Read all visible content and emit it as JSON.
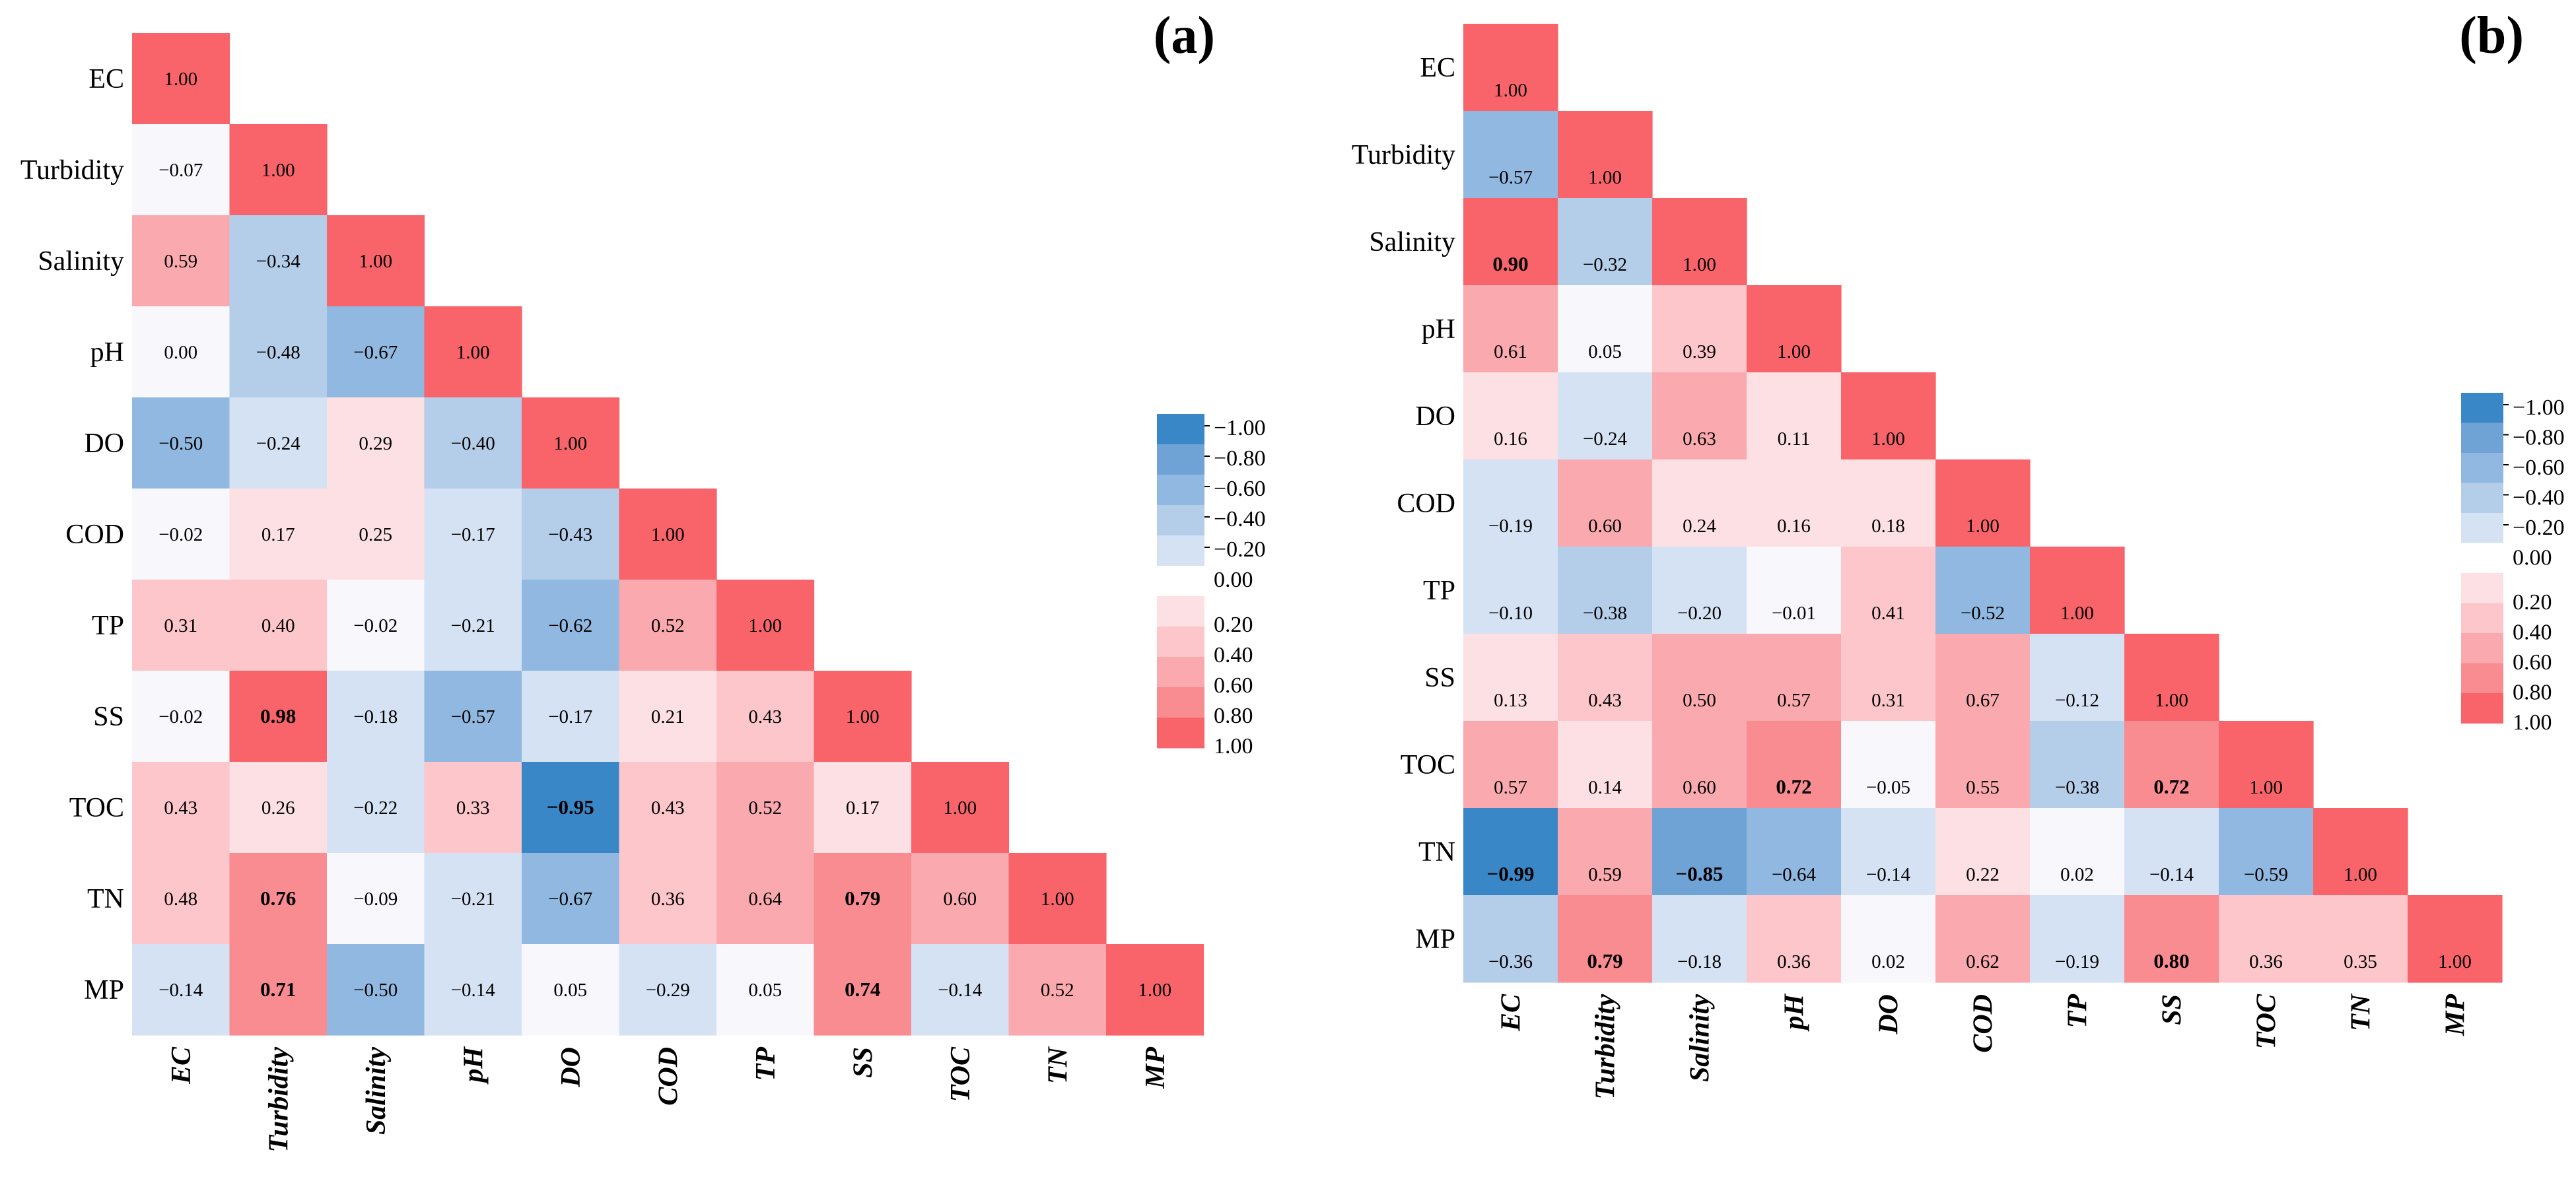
{
  "figure": {
    "colors": {
      "neg_100": "#3a87c7",
      "neg_080": "#6fa3d6",
      "neg_060": "#91b8e0",
      "neg_040": "#b4cde9",
      "neg_020": "#d5e2f3",
      "zero": "#f8f7fb",
      "pos_020": "#fde0e3",
      "pos_040": "#fcc6ca",
      "pos_060": "#faaaae",
      "pos_080": "#f98c90",
      "pos_100": "#f86469"
    }
  },
  "chart_data": [
    {
      "type": "heatmap",
      "title": "(a)",
      "variables": [
        "EC",
        "Turbidity",
        "Salinity",
        "pH",
        "DO",
        "COD",
        "TP",
        "SS",
        "TOC",
        "TN",
        "MP"
      ],
      "matrix": [
        [
          1.0
        ],
        [
          -0.07,
          1.0
        ],
        [
          0.59,
          -0.34,
          1.0
        ],
        [
          0.0,
          -0.48,
          -0.67,
          1.0
        ],
        [
          -0.5,
          -0.24,
          0.29,
          -0.4,
          1.0
        ],
        [
          -0.02,
          0.17,
          0.25,
          -0.17,
          -0.43,
          1.0
        ],
        [
          0.31,
          0.4,
          -0.02,
          -0.21,
          -0.62,
          0.52,
          1.0
        ],
        [
          -0.02,
          0.98,
          -0.18,
          -0.57,
          -0.17,
          0.21,
          0.43,
          1.0
        ],
        [
          0.43,
          0.26,
          -0.22,
          0.33,
          -0.95,
          0.43,
          0.52,
          0.17,
          1.0
        ],
        [
          0.48,
          0.76,
          -0.09,
          -0.21,
          -0.67,
          0.36,
          0.64,
          0.79,
          0.6,
          1.0
        ],
        [
          -0.14,
          0.71,
          -0.5,
          -0.14,
          0.05,
          -0.29,
          0.05,
          0.74,
          -0.14,
          0.52,
          1.0
        ]
      ],
      "cell_labels": [
        [
          "1.00"
        ],
        [
          "−0.07",
          "1.00"
        ],
        [
          "0.59",
          "−0.34",
          "1.00"
        ],
        [
          "0.00",
          "−0.48",
          "−0.67",
          "1.00"
        ],
        [
          "−0.50",
          "−0.24",
          "0.29",
          "−0.40",
          "1.00"
        ],
        [
          "−0.02",
          "0.17",
          "0.25",
          "−0.17",
          "−0.43",
          "1.00"
        ],
        [
          "0.31",
          "0.40",
          "−0.02",
          "−0.21",
          "−0.62",
          "0.52",
          "1.00"
        ],
        [
          "−0.02",
          "0.98",
          "−0.18",
          "−0.57",
          "−0.17",
          "0.21",
          "0.43",
          "1.00"
        ],
        [
          "0.43",
          "0.26",
          "−0.22",
          "0.33",
          "−0.95",
          "0.43",
          "0.52",
          "0.17",
          "1.00"
        ],
        [
          "0.48",
          "0.76",
          "−0.09",
          "−0.21",
          "−0.67",
          "0.36",
          "0.64",
          "0.79",
          "0.60",
          "1.00"
        ],
        [
          "−0.14",
          "0.71",
          "−0.50",
          "−0.14",
          "0.05",
          "−0.29",
          "0.05",
          "0.74",
          "−0.14",
          "0.52",
          "1.00"
        ]
      ],
      "bold_cells": [
        [
          7,
          1
        ],
        [
          8,
          4
        ],
        [
          9,
          1
        ],
        [
          9,
          7
        ],
        [
          10,
          1
        ],
        [
          10,
          7
        ]
      ],
      "colorbar": {
        "range": [
          -1.0,
          1.0
        ],
        "tick_labels": [
          "−1.00",
          "−0.80",
          "−0.60",
          "−0.40",
          "−0.20",
          "0.00",
          "0.20",
          "0.40",
          "0.60",
          "0.80",
          "1.00"
        ]
      }
    },
    {
      "type": "heatmap",
      "title": "(b)",
      "variables": [
        "EC",
        "Turbidity",
        "Salinity",
        "pH",
        "DO",
        "COD",
        "TP",
        "SS",
        "TOC",
        "TN",
        "MP"
      ],
      "matrix": [
        [
          1.0
        ],
        [
          -0.57,
          1.0
        ],
        [
          0.9,
          -0.32,
          1.0
        ],
        [
          0.61,
          0.05,
          0.39,
          1.0
        ],
        [
          0.16,
          -0.24,
          0.63,
          0.11,
          1.0
        ],
        [
          -0.19,
          0.6,
          0.24,
          0.16,
          0.18,
          1.0
        ],
        [
          -0.1,
          -0.38,
          -0.2,
          -0.01,
          0.41,
          -0.52,
          1.0
        ],
        [
          0.13,
          0.43,
          0.5,
          0.57,
          0.31,
          0.67,
          -0.12,
          1.0
        ],
        [
          0.57,
          0.14,
          0.6,
          0.72,
          -0.05,
          0.55,
          -0.38,
          0.72,
          1.0
        ],
        [
          -0.99,
          0.59,
          -0.85,
          -0.64,
          -0.14,
          0.22,
          0.02,
          -0.14,
          -0.59,
          1.0
        ],
        [
          -0.36,
          0.79,
          -0.18,
          0.36,
          0.02,
          0.62,
          -0.19,
          0.8,
          0.36,
          0.35,
          1.0
        ]
      ],
      "cell_labels": [
        [
          "1.00"
        ],
        [
          "−0.57",
          "1.00"
        ],
        [
          "0.90",
          "−0.32",
          "1.00"
        ],
        [
          "0.61",
          "0.05",
          "0.39",
          "1.00"
        ],
        [
          "0.16",
          "−0.24",
          "0.63",
          "0.11",
          "1.00"
        ],
        [
          "−0.19",
          "0.60",
          "0.24",
          "0.16",
          "0.18",
          "1.00"
        ],
        [
          "−0.10",
          "−0.38",
          "−0.20",
          "−0.01",
          "0.41",
          "−0.52",
          "1.00"
        ],
        [
          "0.13",
          "0.43",
          "0.50",
          "0.57",
          "0.31",
          "0.67",
          "−0.12",
          "1.00"
        ],
        [
          "0.57",
          "0.14",
          "0.60",
          "0.72",
          "−0.05",
          "0.55",
          "−0.38",
          "0.72",
          "1.00"
        ],
        [
          "−0.99",
          "0.59",
          "−0.85",
          "−0.64",
          "−0.14",
          "0.22",
          "0.02",
          "−0.14",
          "−0.59",
          "1.00"
        ],
        [
          "−0.36",
          "0.79",
          "−0.18",
          "0.36",
          "0.02",
          "0.62",
          "−0.19",
          "0.80",
          "0.36",
          "0.35",
          "1.00"
        ]
      ],
      "bold_cells": [
        [
          2,
          0
        ],
        [
          8,
          3
        ],
        [
          8,
          7
        ],
        [
          9,
          0
        ],
        [
          9,
          2
        ],
        [
          10,
          1
        ],
        [
          10,
          7
        ]
      ],
      "colorbar": {
        "range": [
          -1.0,
          1.0
        ],
        "tick_labels": [
          "−1.00",
          "−0.80",
          "−0.60",
          "−0.40",
          "−0.20",
          "0.00",
          "0.20",
          "0.40",
          "0.60",
          "0.80",
          "1.00"
        ]
      }
    }
  ]
}
